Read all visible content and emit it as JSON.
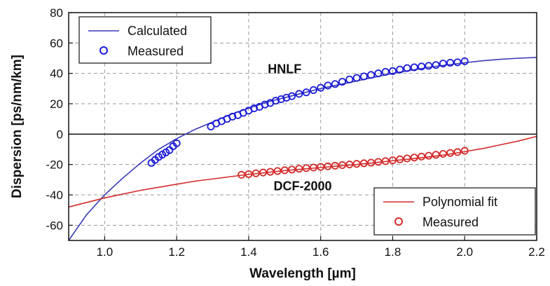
{
  "chart_data": {
    "type": "line",
    "xlabel": "Wavelength [µm]",
    "ylabel": "Dispersion [ps/nm/km]",
    "xlim": [
      0.9,
      2.2
    ],
    "ylim": [
      -70,
      80
    ],
    "xticks": [
      1.0,
      1.2,
      1.4,
      1.6,
      1.8,
      2.0,
      2.2
    ],
    "xtick_labels": [
      "1.0",
      "1.2",
      "1.4",
      "1.6",
      "1.8",
      "2.0",
      "2.2"
    ],
    "yticks": [
      -60,
      -40,
      -20,
      0,
      20,
      40,
      60,
      80
    ],
    "ytick_labels": [
      "-60",
      "-40",
      "-20",
      "0",
      "20",
      "40",
      "60",
      "80"
    ],
    "grid": true,
    "zero_line": true,
    "annotations": [
      {
        "text": "HNLF",
        "x": 1.5,
        "y": 40
      },
      {
        "text": "DCF-2000",
        "x": 1.55,
        "y": -37
      }
    ],
    "legends": [
      {
        "placement": "top-left",
        "entries": [
          {
            "label": "Calculated",
            "marker": "line",
            "color": "#3a3ab8"
          },
          {
            "label": "Measured",
            "marker": "circle",
            "color": "#1a1ad6"
          }
        ]
      },
      {
        "placement": "bottom-right",
        "entries": [
          {
            "label": "Polynomial fit",
            "marker": "line",
            "color": "#d42a2a"
          },
          {
            "label": "Measured",
            "marker": "circle",
            "color": "#d42a2a"
          }
        ]
      }
    ],
    "series": [
      {
        "group": "HNLF",
        "name": "Calculated",
        "kind": "line",
        "color": "#3a3ab8",
        "x": [
          0.9,
          0.95,
          1.0,
          1.05,
          1.1,
          1.15,
          1.2,
          1.25,
          1.3,
          1.35,
          1.4,
          1.45,
          1.5,
          1.55,
          1.6,
          1.65,
          1.7,
          1.75,
          1.8,
          1.85,
          1.9,
          1.95,
          2.0,
          2.05,
          2.1,
          2.15,
          2.2
        ],
        "y": [
          -70,
          -53,
          -40,
          -29,
          -19,
          -10,
          -3,
          3,
          8,
          13,
          17,
          21,
          24,
          27,
          30,
          32.5,
          35,
          37.5,
          40,
          42,
          44,
          45.5,
          47,
          48.3,
          49.3,
          50,
          50.5
        ]
      },
      {
        "group": "HNLF",
        "name": "Measured",
        "kind": "scatter",
        "color": "#1a1ad6",
        "x": [
          1.13,
          1.14,
          1.15,
          1.16,
          1.17,
          1.18,
          1.19,
          1.2,
          1.295,
          1.31,
          1.325,
          1.34,
          1.355,
          1.37,
          1.385,
          1.4,
          1.415,
          1.43,
          1.445,
          1.46,
          1.475,
          1.49,
          1.505,
          1.52,
          1.54,
          1.56,
          1.58,
          1.6,
          1.62,
          1.64,
          1.66,
          1.68,
          1.7,
          1.72,
          1.74,
          1.76,
          1.78,
          1.8,
          1.82,
          1.84,
          1.86,
          1.88,
          1.9,
          1.92,
          1.94,
          1.96,
          1.98,
          2.0
        ],
        "y": [
          -19,
          -17,
          -15,
          -13.5,
          -12,
          -10.5,
          -8,
          -6,
          5,
          7,
          8.5,
          10,
          11.5,
          12.5,
          14,
          15.5,
          17,
          18,
          19.5,
          20.5,
          22,
          23,
          24,
          25,
          26.5,
          27.5,
          29,
          30.5,
          32,
          33,
          34.5,
          36,
          37,
          38,
          39,
          40,
          41,
          41.5,
          42.5,
          43.5,
          44,
          44.5,
          45,
          45.5,
          46.5,
          47,
          47.3,
          48
        ]
      },
      {
        "group": "DCF-2000",
        "name": "Polynomial fit",
        "kind": "line",
        "color": "#d42a2a",
        "x": [
          0.9,
          0.95,
          1.0,
          1.05,
          1.1,
          1.15,
          1.2,
          1.25,
          1.3,
          1.35,
          1.4,
          1.45,
          1.5,
          1.55,
          1.6,
          1.65,
          1.7,
          1.75,
          1.8,
          1.85,
          1.9,
          1.95,
          2.0,
          2.05,
          2.1,
          2.15,
          2.2
        ],
        "y": [
          -48,
          -45,
          -42,
          -39.5,
          -37,
          -35,
          -33,
          -31,
          -29.5,
          -28,
          -26.5,
          -25.3,
          -24,
          -23,
          -22,
          -21,
          -20,
          -18.8,
          -17.5,
          -16.3,
          -15,
          -13.5,
          -11.5,
          -9.5,
          -7,
          -4.5,
          -1.5
        ]
      },
      {
        "group": "DCF-2000",
        "name": "Measured",
        "kind": "scatter",
        "color": "#d42a2a",
        "x": [
          1.38,
          1.4,
          1.42,
          1.44,
          1.46,
          1.48,
          1.5,
          1.52,
          1.54,
          1.56,
          1.58,
          1.6,
          1.62,
          1.64,
          1.66,
          1.68,
          1.7,
          1.72,
          1.74,
          1.76,
          1.78,
          1.8,
          1.82,
          1.84,
          1.86,
          1.88,
          1.9,
          1.92,
          1.94,
          1.96,
          1.98,
          2.0
        ],
        "y": [
          -26.8,
          -26.3,
          -25.8,
          -25.3,
          -24.8,
          -24.3,
          -23.8,
          -23.3,
          -22.8,
          -22.4,
          -22.0,
          -21.6,
          -21.2,
          -20.8,
          -20.4,
          -20.0,
          -19.6,
          -19.2,
          -18.8,
          -18.3,
          -17.8,
          -17.2,
          -16.6,
          -16.0,
          -15.4,
          -14.8,
          -14.2,
          -13.6,
          -13.0,
          -12.4,
          -11.8,
          -11.0
        ]
      }
    ]
  }
}
